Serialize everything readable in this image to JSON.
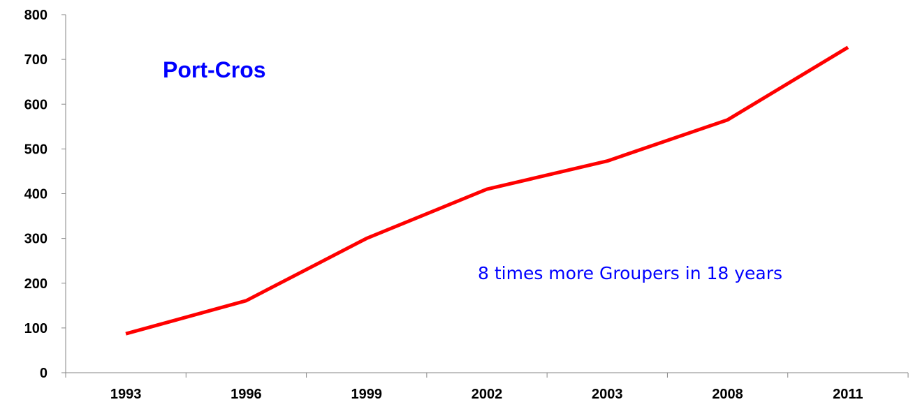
{
  "chart_data": {
    "type": "line",
    "title": "",
    "xlabel": "",
    "ylabel": "",
    "categories": [
      "1993",
      "1996",
      "1999",
      "2002",
      "2003",
      "2008",
      "2011"
    ],
    "series": [
      {
        "values": [
          87,
          161,
          300,
          410,
          473,
          565,
          727
        ],
        "color": "#ff0000"
      }
    ],
    "ylim": [
      0,
      800
    ],
    "yticks": [
      0,
      100,
      200,
      300,
      400,
      500,
      600,
      700,
      800
    ],
    "grid": false,
    "legend": "none",
    "annotations": {
      "site_label": "Port-Cros",
      "site_label_color": "#0000ff",
      "note": "8 times more Groupers in 18 years",
      "note_color": "#0000ff"
    }
  }
}
